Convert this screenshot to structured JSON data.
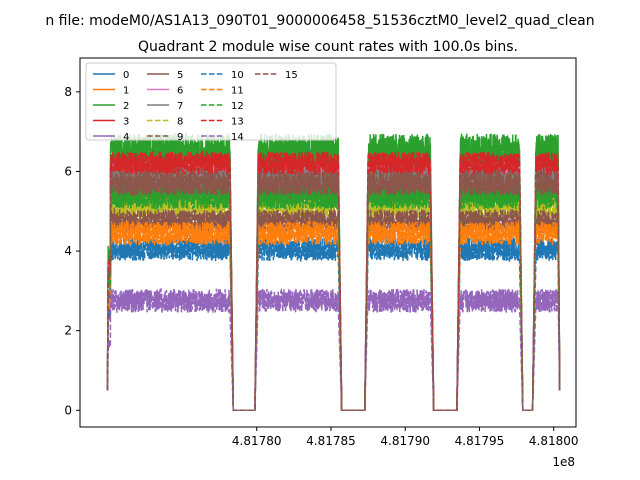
{
  "chart_data": {
    "type": "line",
    "suptitle": "n file: modeM0/AS1A13_090T01_9000006458_51536cztM0_level2_quad_clean",
    "title": "Quadrant 2 module wise count rates with 100.0s bins.",
    "xlabel": "",
    "ylabel": "",
    "x_offset_label": "1e8",
    "xlim": [
      4.817681,
      4.818015
    ],
    "ylim": [
      -0.42,
      8.85
    ],
    "xticks": [
      4.8178,
      4.81785,
      4.8179,
      4.81795,
      4.818
    ],
    "xtick_labels": [
      "4.81780",
      "4.81785",
      "4.81790",
      "4.81795",
      "4.81800"
    ],
    "yticks": [
      0,
      2,
      4,
      6,
      8
    ],
    "ytick_labels": [
      "0",
      "2",
      "4",
      "6",
      "8"
    ],
    "grid": false,
    "legend_position": "top-left",
    "segments": [
      [
        4.8177,
        4.817782
      ],
      [
        4.817801,
        4.817855
      ],
      [
        4.817875,
        4.817917
      ],
      [
        4.817937,
        4.817977
      ],
      [
        4.817988,
        4.818003
      ]
    ],
    "series": [
      {
        "name": "0",
        "level": 6.25,
        "amp": 0.35,
        "color": "#1f77b4",
        "style": "solid"
      },
      {
        "name": "1",
        "level": 5.75,
        "amp": 0.3,
        "color": "#ff7f0e",
        "style": "solid"
      },
      {
        "name": "2",
        "level": 6.55,
        "amp": 0.4,
        "color": "#2ca02c",
        "style": "solid"
      },
      {
        "name": "3",
        "level": 5.7,
        "amp": 0.3,
        "color": "#d62728",
        "style": "solid"
      },
      {
        "name": "4",
        "level": 5.95,
        "amp": 0.3,
        "color": "#9467bd",
        "style": "solid"
      },
      {
        "name": "5",
        "level": 5.45,
        "amp": 0.3,
        "color": "#8c564b",
        "style": "solid"
      },
      {
        "name": "6",
        "level": 5.95,
        "amp": 0.3,
        "color": "#e377c2",
        "style": "solid"
      },
      {
        "name": "7",
        "level": 5.85,
        "amp": 0.3,
        "color": "#7f7f7f",
        "style": "solid"
      },
      {
        "name": "8",
        "level": 5.1,
        "amp": 0.3,
        "color": "#bcbd22",
        "style": "dashed"
      },
      {
        "name": "9",
        "level": 4.75,
        "amp": 0.3,
        "color": "#8c564b",
        "style": "dashed"
      },
      {
        "name": "10",
        "level": 4.05,
        "amp": 0.3,
        "color": "#1f77b4",
        "style": "dashed"
      },
      {
        "name": "11",
        "level": 4.45,
        "amp": 0.3,
        "color": "#ff7f0e",
        "style": "dashed"
      },
      {
        "name": "12",
        "level": 5.35,
        "amp": 0.3,
        "color": "#2ca02c",
        "style": "dashed"
      },
      {
        "name": "13",
        "level": 6.2,
        "amp": 0.3,
        "color": "#d62728",
        "style": "dashed"
      },
      {
        "name": "14",
        "level": 2.75,
        "amp": 0.3,
        "color": "#9467bd",
        "style": "dashed"
      },
      {
        "name": "15",
        "level": 5.7,
        "amp": 0.3,
        "color": "#8c564b",
        "style": "dashed"
      }
    ]
  }
}
